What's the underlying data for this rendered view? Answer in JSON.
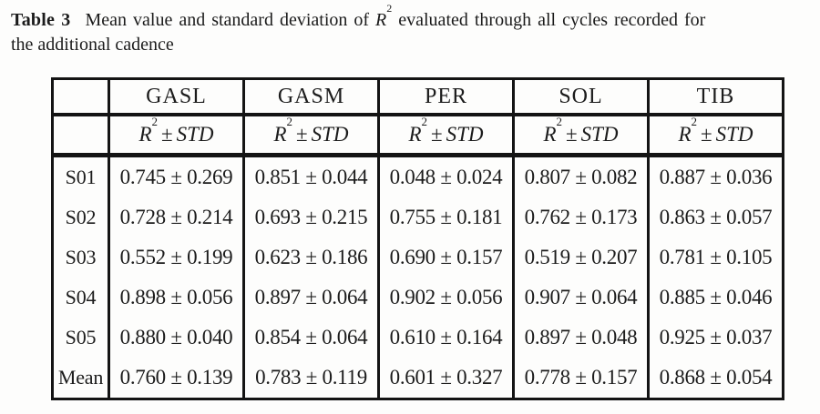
{
  "caption": {
    "label": "Table 3",
    "pre_r": "Mean value and standard deviation of",
    "r_base": "R",
    "r_sup": "2",
    "post_r": "evaluated through all cycles recorded for",
    "line2": "the additional cadence"
  },
  "table": {
    "columns": [
      "GASL",
      "GASM",
      "PER",
      "SOL",
      "TIB"
    ],
    "subheader": {
      "r": "R",
      "sup": "2",
      "pm": "±",
      "std": "STD"
    },
    "rows": [
      {
        "label": "S01",
        "values": [
          "0.745 ± 0.269",
          "0.851 ± 0.044",
          "0.048 ± 0.024",
          "0.807 ± 0.082",
          "0.887 ± 0.036"
        ]
      },
      {
        "label": "S02",
        "values": [
          "0.728 ± 0.214",
          "0.693 ± 0.215",
          "0.755 ± 0.181",
          "0.762 ± 0.173",
          "0.863 ± 0.057"
        ]
      },
      {
        "label": "S03",
        "values": [
          "0.552 ± 0.199",
          "0.623 ± 0.186",
          "0.690 ± 0.157",
          "0.519 ± 0.207",
          "0.781 ± 0.105"
        ]
      },
      {
        "label": "S04",
        "values": [
          "0.898 ± 0.056",
          "0.897 ± 0.064",
          "0.902 ± 0.056",
          "0.907 ± 0.064",
          "0.885 ± 0.046"
        ]
      },
      {
        "label": "S05",
        "values": [
          "0.880 ± 0.040",
          "0.854 ± 0.064",
          "0.610 ± 0.164",
          "0.897 ± 0.048",
          "0.925 ± 0.037"
        ]
      },
      {
        "label": "Mean",
        "values": [
          "0.760 ± 0.139",
          "0.783 ± 0.119",
          "0.601 ± 0.327",
          "0.778 ± 0.157",
          "0.868 ± 0.054"
        ]
      }
    ]
  },
  "colors": {
    "text": "#1c1c1c",
    "border": "#141414",
    "background": "#fdfdfc"
  }
}
